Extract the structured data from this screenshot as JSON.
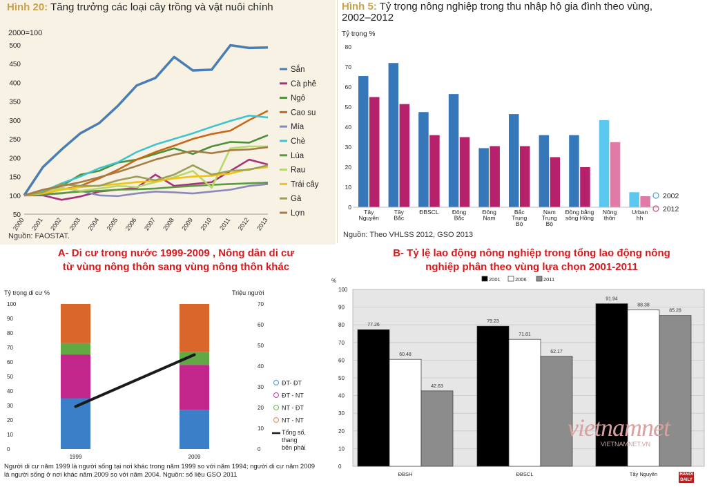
{
  "panel1": {
    "fig_label": "Hình 20:",
    "fig_title": "Tăng trưởng các loại cây trồng và vật nuôi chính",
    "source": "Nguồn: FAOSTAT."
  },
  "panel2": {
    "fig_label": "Hình 5:",
    "fig_title_line1": "Tỷ trọng nông nghiệp trong thu nhập hộ gia đình theo vùng,",
    "fig_title_line2": "2002–2012",
    "source": "Nguồn: Theo VHLSS 2012, GSO 2013"
  },
  "section_a": {
    "line1": "A- Di cư trong nước 1999-2009 , Nông dân di cư",
    "line2": "từ vùng nông thôn sang vùng nông thôn khác",
    "note_line1": "Người di cư năm 1999 là người sống tại nơi khác trong năm 1999 so với năm 1994; người di cư năm 2009",
    "note_line2": "là người sống ở nơi khác năm 2009 so với năm 2004. Nguồn: số liệu GSO 2011"
  },
  "section_b": {
    "line1": "B- Tỷ lệ lao động nông nghiệp trong tổng lao động  nông",
    "line2": "nghiệp phân theo vùng lựa chọn 2001-2011"
  },
  "watermark": {
    "brand": "vietnamnet",
    "sub": "VIETNAMNET.VN",
    "stamp": "HANOI DAILY"
  },
  "chart_data": [
    {
      "type": "line",
      "title": "Tăng trưởng các loại cây trồng và vật nuôi chính",
      "ylabel": "2000=100",
      "ylim": [
        50,
        500
      ],
      "yticks": [
        50,
        100,
        150,
        200,
        250,
        300,
        350,
        400,
        450,
        500
      ],
      "legend_position": "right",
      "x": [
        "2000",
        "2001",
        "2002",
        "2003",
        "2004",
        "2005",
        "2006",
        "2007",
        "2008",
        "2009",
        "2010",
        "2011",
        "2012",
        "2013"
      ],
      "series": [
        {
          "name": "Sắn",
          "color": "#4a7db3",
          "values": [
            100,
            175,
            222,
            265,
            292,
            338,
            392,
            412,
            468,
            432,
            434,
            499,
            492,
            493
          ]
        },
        {
          "name": "Cà phê",
          "color": "#a8317a",
          "values": [
            100,
            100,
            88,
            97,
            110,
            115,
            120,
            155,
            125,
            130,
            135,
            165,
            195,
            182
          ]
        },
        {
          "name": "Ngô",
          "color": "#4e8f3a",
          "values": [
            100,
            110,
            125,
            155,
            165,
            187,
            195,
            210,
            225,
            210,
            230,
            242,
            240,
            260
          ]
        },
        {
          "name": "Cao su",
          "color": "#c8671a",
          "values": [
            100,
            105,
            115,
            125,
            145,
            168,
            195,
            215,
            232,
            250,
            263,
            272,
            300,
            325
          ]
        },
        {
          "name": "Mía",
          "color": "#8a88b8",
          "values": [
            100,
            102,
            105,
            112,
            100,
            98,
            105,
            110,
            108,
            105,
            110,
            115,
            125,
            130
          ]
        },
        {
          "name": "Chè",
          "color": "#3ec4cf",
          "values": [
            100,
            110,
            132,
            150,
            172,
            188,
            215,
            235,
            250,
            265,
            282,
            298,
            312,
            307
          ]
        },
        {
          "name": "Lúa",
          "color": "#5a9a40",
          "values": [
            100,
            103,
            106,
            110,
            112,
            115,
            116,
            118,
            122,
            125,
            128,
            130,
            132,
            134
          ]
        },
        {
          "name": "Rau",
          "color": "#b8d86a",
          "values": [
            100,
            108,
            120,
            112,
            118,
            125,
            122,
            135,
            148,
            165,
            120,
            225,
            230,
            230
          ]
        },
        {
          "name": "Trái cây",
          "color": "#f2c314",
          "values": [
            100,
            105,
            115,
            122,
            126,
            130,
            135,
            138,
            145,
            150,
            152,
            158,
            170,
            175
          ]
        },
        {
          "name": "Gà",
          "color": "#9aa05a",
          "values": [
            100,
            108,
            130,
            125,
            125,
            140,
            150,
            140,
            155,
            180,
            155,
            165,
            168,
            180
          ]
        },
        {
          "name": "Lợn",
          "color": "#a57c45",
          "values": [
            100,
            115,
            125,
            135,
            148,
            162,
            178,
            195,
            208,
            218,
            212,
            220,
            222,
            228
          ]
        }
      ]
    },
    {
      "type": "bar",
      "title": "Tỷ trọng nông nghiệp trong thu nhập hộ gia đình theo vùng, 2002–2012",
      "ylabel": "Tỷ trọng %",
      "ylim": [
        0,
        80
      ],
      "yticks": [
        0,
        10,
        20,
        30,
        40,
        50,
        60,
        70,
        80
      ],
      "legend_position": "bottom-right",
      "categories": [
        [
          "Tây",
          "Nguyên"
        ],
        [
          "Tây",
          "Bắc"
        ],
        [
          "ĐBSCL"
        ],
        [
          "Đông",
          "Bắc"
        ],
        [
          "Đông",
          "Nam"
        ],
        [
          "Bắc",
          "Trung",
          "Bộ"
        ],
        [
          "Nam",
          "Trung",
          "Bộ"
        ],
        [
          "Đồng bằng",
          "sông Hồng"
        ],
        [
          "Nông",
          "thôn"
        ],
        [
          "Urban",
          "hh"
        ]
      ],
      "series": [
        {
          "name": "2002",
          "values": [
            65.5,
            72,
            47.5,
            56.5,
            29.5,
            46.5,
            36,
            36,
            43.5,
            7.5
          ]
        },
        {
          "name": "2012",
          "values": [
            55,
            51.5,
            36,
            35,
            30.5,
            30.5,
            25,
            20,
            32.5,
            5.5
          ]
        }
      ],
      "colors_2002": [
        "#3577b8",
        "#3577b8",
        "#3577b8",
        "#3577b8",
        "#3577b8",
        "#3577b8",
        "#3577b8",
        "#3577b8",
        "#5bc8f0",
        "#5bc8f0"
      ],
      "colors_2012": [
        "#b5216b",
        "#b5216b",
        "#b5216b",
        "#b5216b",
        "#b5216b",
        "#b5216b",
        "#b5216b",
        "#b5216b",
        "#e07aa6",
        "#e07aa6"
      ]
    },
    {
      "type": "bar",
      "stacked": true,
      "ylabel_left": "Tỷ trọng di cư %",
      "ylabel_right": "Triệu người",
      "ylim": [
        0,
        100
      ],
      "ylim_right": [
        0,
        70
      ],
      "yticks": [
        0,
        10,
        20,
        30,
        40,
        50,
        60,
        70,
        80,
        90,
        100
      ],
      "yticks_right": [
        0,
        10,
        20,
        30,
        40,
        50,
        60,
        70
      ],
      "legend_position": "right",
      "categories": [
        "1999",
        "2009"
      ],
      "series": [
        {
          "name": "NT - NT",
          "color": "#3a7fc8",
          "values": [
            35,
            27
          ]
        },
        {
          "name": "ĐT - NT",
          "color": "#c2268a",
          "values": [
            30,
            31
          ]
        },
        {
          "name": "NT - ĐT",
          "color": "#62a845",
          "values": [
            8,
            9
          ]
        },
        {
          "name": "ĐT- ĐT",
          "color": "#d9662a",
          "values": [
            27,
            33
          ]
        }
      ],
      "line_series": {
        "name": "Tổng số, thang bên phải",
        "lines": [
          "Tổng số,",
          "thang",
          "bên phải"
        ],
        "values": [
          20.5,
          45.5
        ]
      },
      "legend_order": [
        "ĐT- ĐT",
        "ĐT - NT",
        "NT - ĐT",
        "NT - NT",
        "Tổng số, thang bên phải"
      ]
    },
    {
      "type": "bar",
      "ylabel": "%",
      "ylim": [
        0,
        100
      ],
      "yticks": [
        0,
        10,
        20,
        30,
        40,
        50,
        60,
        70,
        80,
        90,
        100
      ],
      "legend_position": "top",
      "categories": [
        "ĐBSH",
        "ĐBSCL",
        "Tây Nguyên"
      ],
      "series": [
        {
          "name": "2001",
          "color": "#000000",
          "values": [
            77.26,
            79.23,
            91.94
          ]
        },
        {
          "name": "2006",
          "color": "#ffffff",
          "values": [
            60.48,
            71.81,
            88.38
          ]
        },
        {
          "name": "2011",
          "color": "#8c8c8c",
          "values": [
            42.63,
            62.17,
            85.28
          ]
        }
      ]
    }
  ]
}
